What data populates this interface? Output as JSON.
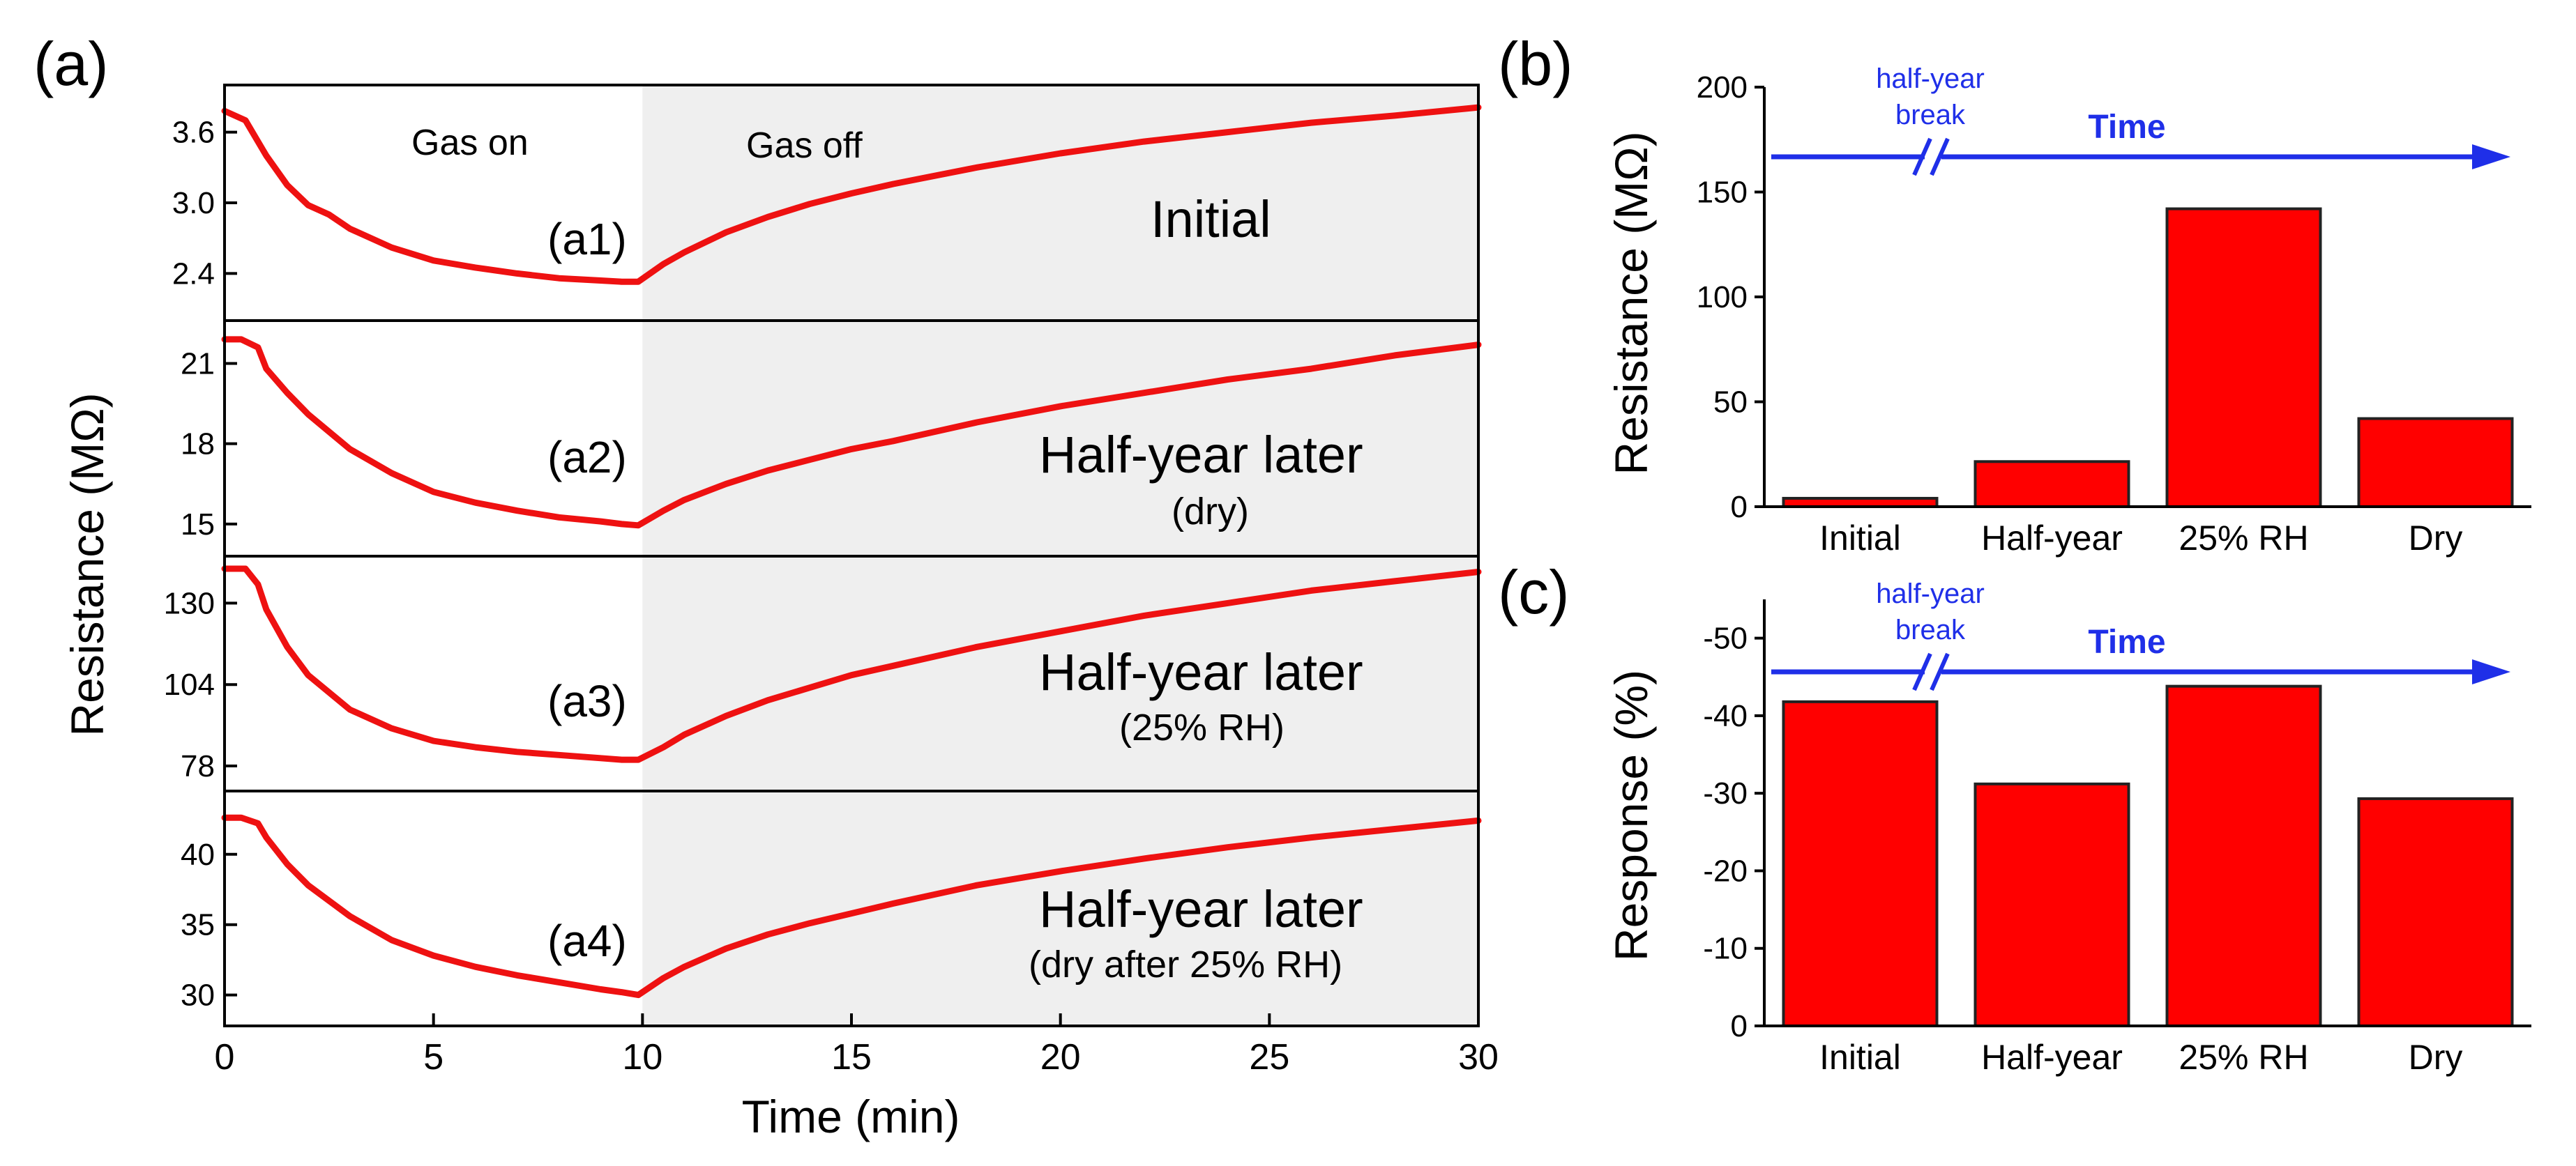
{
  "colors": {
    "line": "#ee1111",
    "bar_fill": "#ff0000",
    "bar_stroke": "#222222",
    "timeline": "#1f2fe8",
    "gas_off_shade": "#efefef",
    "axis": "#000000"
  },
  "panel_a": {
    "letter": "(a)",
    "xlabel": "Time (min)",
    "ylabel": "Resistance (MΩ)",
    "gas_on_label": "Gas on",
    "gas_off_label": "Gas off",
    "gas_switch_min": 10,
    "xlim": [
      0,
      30
    ],
    "xticks": [
      "0",
      "5",
      "10",
      "15",
      "20",
      "25",
      "30"
    ]
  },
  "panel_b": {
    "letter": "(b)",
    "break_label_line1": "half-year",
    "break_label_line2": "break",
    "time_label": "Time"
  },
  "panel_c": {
    "letter": "(c)",
    "break_label_line1": "half-year",
    "break_label_line2": "break",
    "time_label": "Time"
  },
  "chart_data": [
    {
      "type": "line",
      "panel": "a1",
      "label": "(a1)",
      "condition": "Initial",
      "condition_sub": "",
      "ylim": [
        2.0,
        4.0
      ],
      "yticks": [
        "2.4",
        "3.0",
        "3.6"
      ],
      "x": [
        0,
        0.5,
        1,
        1.5,
        2,
        2.5,
        3,
        4,
        5,
        6,
        7,
        8,
        9,
        9.5,
        9.9,
        10.5,
        11,
        12,
        13,
        14,
        15,
        16,
        18,
        20,
        22,
        24,
        26,
        28,
        30
      ],
      "y": [
        3.78,
        3.7,
        3.4,
        3.15,
        2.98,
        2.9,
        2.78,
        2.62,
        2.51,
        2.45,
        2.4,
        2.36,
        2.34,
        2.33,
        2.33,
        2.48,
        2.58,
        2.75,
        2.88,
        2.99,
        3.08,
        3.16,
        3.3,
        3.42,
        3.52,
        3.6,
        3.68,
        3.74,
        3.81
      ]
    },
    {
      "type": "line",
      "panel": "a2",
      "label": "(a2)",
      "condition": "Half-year later",
      "condition_sub": "(dry)",
      "ylim": [
        13.8,
        22.6
      ],
      "yticks": [
        "15",
        "18",
        "21"
      ],
      "x": [
        0,
        0.4,
        0.8,
        1,
        1.5,
        2,
        3,
        4,
        5,
        6,
        7,
        8,
        9,
        9.5,
        9.9,
        10.5,
        11,
        12,
        13,
        14,
        15,
        16,
        18,
        20,
        22,
        24,
        26,
        28,
        30
      ],
      "y": [
        21.9,
        21.9,
        21.6,
        20.8,
        19.9,
        19.1,
        17.8,
        16.9,
        16.2,
        15.8,
        15.5,
        15.25,
        15.1,
        15.0,
        14.95,
        15.5,
        15.9,
        16.5,
        17.0,
        17.4,
        17.8,
        18.1,
        18.8,
        19.4,
        19.9,
        20.4,
        20.8,
        21.3,
        21.7
      ]
    },
    {
      "type": "line",
      "panel": "a3",
      "label": "(a3)",
      "condition": "Half-year later",
      "condition_sub": "(25% RH)",
      "ylim": [
        70,
        145
      ],
      "yticks": [
        "78",
        "104",
        "130"
      ],
      "x": [
        0,
        0.5,
        0.8,
        1,
        1.5,
        2,
        3,
        4,
        5,
        6,
        7,
        8,
        9,
        9.5,
        9.9,
        10.5,
        11,
        12,
        13,
        14,
        15,
        16,
        18,
        20,
        22,
        24,
        26,
        28,
        30
      ],
      "y": [
        141,
        141,
        136,
        128,
        116,
        107,
        96,
        90,
        86,
        84,
        82.5,
        81.5,
        80.5,
        80,
        80,
        84,
        88,
        94,
        99,
        103,
        107,
        110,
        116,
        121,
        126,
        130,
        134,
        137,
        140
      ]
    },
    {
      "type": "line",
      "panel": "a4",
      "label": "(a4)",
      "condition": "Half-year later",
      "condition_sub": "(dry after 25% RH)",
      "ylim": [
        27.8,
        44.5
      ],
      "yticks": [
        "30",
        "35",
        "40"
      ],
      "x": [
        0,
        0.4,
        0.8,
        1,
        1.5,
        2,
        3,
        4,
        5,
        6,
        7,
        8,
        9,
        9.5,
        9.9,
        10.5,
        11,
        12,
        13,
        14,
        15,
        16,
        18,
        20,
        22,
        24,
        26,
        28,
        30
      ],
      "y": [
        42.6,
        42.6,
        42.2,
        41.2,
        39.3,
        37.8,
        35.6,
        33.9,
        32.8,
        32.0,
        31.4,
        30.9,
        30.4,
        30.2,
        30.0,
        31.2,
        32.0,
        33.3,
        34.3,
        35.1,
        35.8,
        36.5,
        37.8,
        38.8,
        39.7,
        40.5,
        41.2,
        41.8,
        42.4
      ]
    },
    {
      "type": "bar",
      "panel": "b",
      "ylabel": "Resistance (MΩ)",
      "categories": [
        "Initial",
        "Half-year",
        "25% RH",
        "Dry"
      ],
      "values": [
        4,
        21.5,
        142,
        42
      ],
      "ylim": [
        0,
        200
      ],
      "yticks": [
        "0",
        "50",
        "100",
        "150",
        "200"
      ]
    },
    {
      "type": "bar",
      "panel": "c",
      "ylabel": "Response (%)",
      "categories": [
        "Initial",
        "Half-year",
        "25% RH",
        "Dry"
      ],
      "values": [
        -41.8,
        -31.2,
        -43.8,
        -29.3
      ],
      "ylim": [
        0,
        -55
      ],
      "yticks": [
        "0",
        "-10",
        "-20",
        "-30",
        "-40",
        "-50"
      ]
    }
  ]
}
